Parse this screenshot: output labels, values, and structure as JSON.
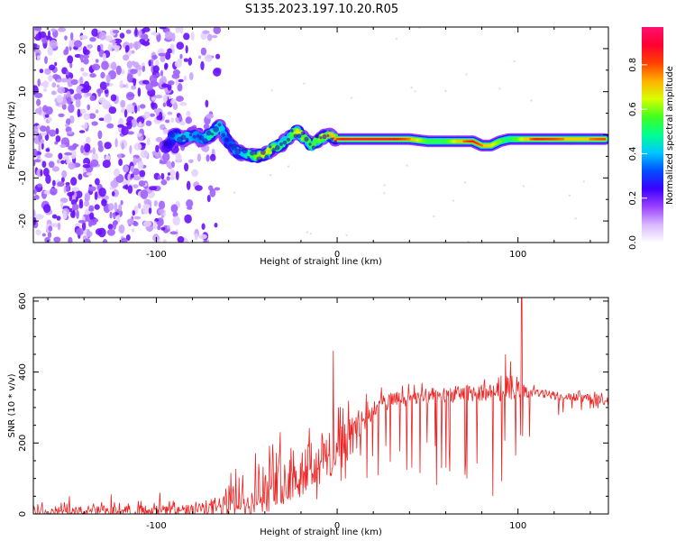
{
  "title": "S135.2023.197.10.20.R05",
  "colors": {
    "snr_line": "#ee2222",
    "frame": "#000000",
    "noise_dots": "#a070f0",
    "ridge_core": "#ff1a3c"
  },
  "colormap_stops": [
    "#ffffff",
    "#d8b8ff",
    "#9a40ff",
    "#3a00ff",
    "#0050ff",
    "#00c8ff",
    "#00ff90",
    "#40ff20",
    "#d8ff00",
    "#ffb000",
    "#ff4000",
    "#ff0030",
    "#ff1070"
  ],
  "chart_data": [
    {
      "type": "heatmap",
      "xlabel": "Height of straight line (km)",
      "ylabel": "Frequency (Hz)",
      "xlim": [
        -168,
        150
      ],
      "ylim": [
        -25,
        25
      ],
      "x_ticks": [
        -100,
        0,
        100
      ],
      "x_tick_labels": [
        "-100",
        "0",
        "100"
      ],
      "y_ticks": [
        -20,
        -10,
        0,
        10,
        20
      ],
      "y_tick_labels": [
        "-20",
        "-10",
        "0",
        "10",
        "20"
      ],
      "colorbar": {
        "label": "Normalized spectral amplitude",
        "range": [
          0,
          0.97
        ],
        "ticks": [
          0.0,
          0.2,
          0.4,
          0.6,
          0.8
        ],
        "tick_labels": [
          "0.0",
          "0.2",
          "0.4",
          "0.6",
          "0.8"
        ]
      },
      "noise_region_x": [
        -168,
        -72
      ],
      "ridge": {
        "x": [
          -95,
          -90,
          -85,
          -80,
          -75,
          -70,
          -65,
          -60,
          -55,
          -50,
          -45,
          -40,
          -35,
          -30,
          -25,
          -22,
          -18,
          -14,
          -10,
          -5,
          0,
          5,
          10,
          20,
          30,
          40,
          50,
          60,
          70,
          75,
          80,
          85,
          90,
          95,
          100,
          110,
          120,
          130,
          140,
          148
        ],
        "freq": [
          -3,
          0,
          -1,
          0,
          -1,
          0,
          2,
          -2,
          -4,
          -4.5,
          -5,
          -4.5,
          -3,
          -2,
          0,
          1,
          -1,
          -2.5,
          -1,
          0,
          -1,
          -1,
          -1,
          -1,
          -1,
          -1,
          -1.5,
          -1.5,
          -1.5,
          -1.5,
          -2.5,
          -2.5,
          -1.5,
          -1,
          -1,
          -1,
          -1,
          -1,
          -1,
          -1
        ],
        "amplitude": [
          0.2,
          0.35,
          0.45,
          0.4,
          0.35,
          0.5,
          0.45,
          0.3,
          0.4,
          0.45,
          0.6,
          0.7,
          0.6,
          0.5,
          0.55,
          0.7,
          0.6,
          0.55,
          0.6,
          0.75,
          0.85,
          0.95,
          0.97,
          0.95,
          0.95,
          0.8,
          0.55,
          0.55,
          0.8,
          0.9,
          0.8,
          0.7,
          0.6,
          0.5,
          0.6,
          0.9,
          0.85,
          0.75,
          0.8,
          0.85
        ]
      }
    },
    {
      "type": "line",
      "xlabel": "Height of straight line (km)",
      "ylabel": "SNR (10 * v/v)",
      "xlim": [
        -168,
        150
      ],
      "ylim": [
        0,
        610
      ],
      "x_ticks": [
        -100,
        0,
        100
      ],
      "x_tick_labels": [
        "-100",
        "0",
        "100"
      ],
      "y_ticks": [
        0,
        200,
        400,
        600
      ],
      "y_tick_labels": [
        "0",
        "200",
        "400",
        "600"
      ],
      "envelope": {
        "x": [
          -168,
          -120,
          -80,
          -65,
          -55,
          -40,
          -25,
          -10,
          0,
          10,
          20,
          30,
          50,
          70,
          90,
          100,
          110,
          130,
          150
        ],
        "baseline": [
          5,
          8,
          10,
          20,
          40,
          80,
          120,
          150,
          180,
          230,
          300,
          320,
          330,
          340,
          345,
          350,
          340,
          330,
          320
        ],
        "upper": [
          25,
          28,
          30,
          60,
          130,
          180,
          220,
          250,
          270,
          300,
          340,
          350,
          360,
          370,
          380,
          380,
          355,
          345,
          335
        ],
        "dip_min": [
          0,
          0,
          0,
          5,
          10,
          20,
          30,
          40,
          60,
          80,
          100,
          110,
          80,
          60,
          40,
          150,
          250,
          290,
          300
        ]
      },
      "spikes": [
        {
          "x": -148,
          "y": 50
        },
        {
          "x": -125,
          "y": 55
        },
        {
          "x": -98,
          "y": 60
        },
        {
          "x": -2,
          "y": 460
        },
        {
          "x": 93,
          "y": 450
        },
        {
          "x": 96,
          "y": 430
        },
        {
          "x": 102,
          "y": 610
        }
      ]
    }
  ]
}
